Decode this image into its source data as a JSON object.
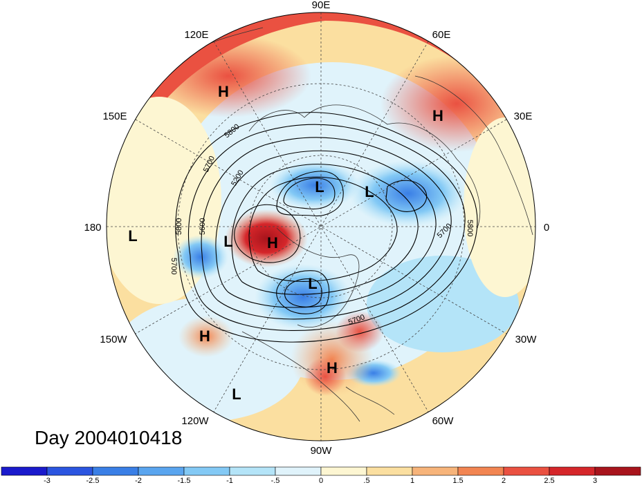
{
  "title": "Day 2004010418",
  "lon_labels": [
    "90E",
    "60E",
    "30E",
    "0",
    "30W",
    "60W",
    "90W",
    "120W",
    "150W",
    "180",
    "150E",
    "120E"
  ],
  "pressure_centers": [
    {
      "type": "H",
      "name": "h-siberia"
    },
    {
      "type": "H",
      "name": "h-europe"
    },
    {
      "type": "L",
      "name": "l-arctic"
    },
    {
      "type": "L",
      "name": "l-north-atlantic"
    },
    {
      "type": "L",
      "name": "l-dateline"
    },
    {
      "type": "L",
      "name": "l-bering"
    },
    {
      "type": "H",
      "name": "h-alaska"
    },
    {
      "type": "L",
      "name": "l-canada"
    },
    {
      "type": "H",
      "name": "h-pacific"
    },
    {
      "type": "H",
      "name": "h-gulf"
    },
    {
      "type": "L",
      "name": "l-subtropical-pacific"
    }
  ],
  "contour_labels": [
    "5800",
    "5700",
    "5200",
    "5800",
    "5600",
    "5700",
    "5800",
    "5700",
    "5700"
  ],
  "colorbar": {
    "ticks": [
      "-3",
      "-2.5",
      "-2",
      "-1.5",
      "-1",
      "-.5",
      "0",
      ".5",
      "1",
      "1.5",
      "2",
      "2.5",
      "3"
    ],
    "colors": [
      "#1a1acc",
      "#2b55e0",
      "#3a7fe6",
      "#5aa5ef",
      "#83c9f5",
      "#b4e4f8",
      "#e0f3fb",
      "#fdf6d2",
      "#fbdfa0",
      "#f7b47a",
      "#f28552",
      "#ea5141",
      "#d5262a",
      "#a8141c"
    ]
  }
}
